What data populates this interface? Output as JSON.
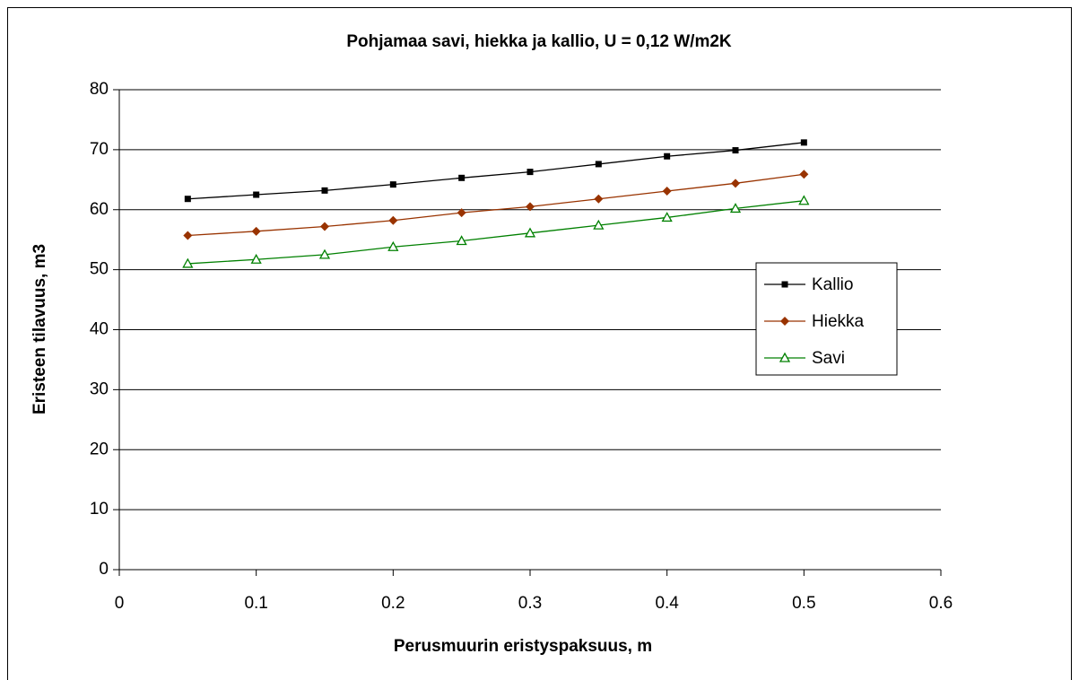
{
  "chart_data": {
    "type": "line",
    "title": "Pohjamaa savi, hiekka ja kallio, U = 0,12 W/m2K",
    "xlabel": "Perusmuurin eristyspaksuus, m",
    "ylabel": "Eristeen tilavuus, m3",
    "x": [
      0.05,
      0.1,
      0.15,
      0.2,
      0.25,
      0.3,
      0.35,
      0.4,
      0.45,
      0.5
    ],
    "series": [
      {
        "name": "Kallio",
        "color": "#000000",
        "marker": "square",
        "values": [
          61.8,
          62.5,
          63.2,
          64.2,
          65.3,
          66.3,
          67.6,
          68.9,
          69.9,
          71.2
        ]
      },
      {
        "name": "Hiekka",
        "color": "#993300",
        "marker": "diamond",
        "values": [
          55.7,
          56.4,
          57.2,
          58.2,
          59.5,
          60.5,
          61.8,
          63.1,
          64.4,
          65.9
        ]
      },
      {
        "name": "Savi",
        "color": "#008000",
        "marker": "triangle-open",
        "values": [
          51.0,
          51.7,
          52.5,
          53.8,
          54.8,
          56.1,
          57.4,
          58.7,
          60.2,
          61.5
        ]
      }
    ],
    "xlim": [
      0,
      0.6
    ],
    "xticks": [
      0,
      0.1,
      0.2,
      0.3,
      0.4,
      0.5,
      0.6
    ],
    "ylim": [
      0,
      80
    ],
    "yticks": [
      0,
      10,
      20,
      30,
      40,
      50,
      60,
      70,
      80
    ],
    "grid": true,
    "legend": "right"
  }
}
